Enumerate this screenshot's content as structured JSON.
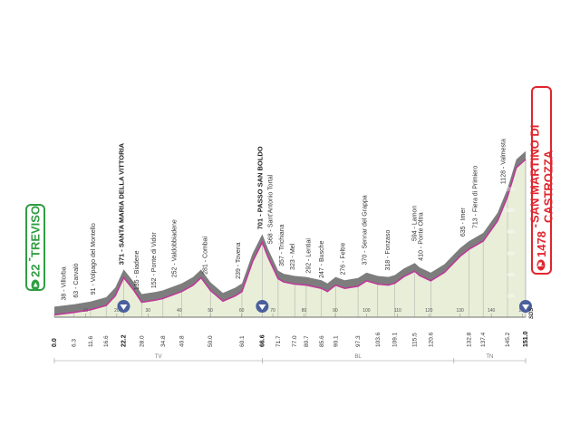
{
  "start": {
    "altitude": "22",
    "name": "TREVISO",
    "icon": "start-icon"
  },
  "finish": {
    "altitude": "1478",
    "name": "SAN MARTINO DI CASTROZZA",
    "icon": "finish-icon"
  },
  "colors": {
    "profile_fill": "#e8eed8",
    "profile_shadow": "#7d7d7d",
    "route_line": "#c0399a",
    "start": "#2f9e41",
    "finish": "#e0262e",
    "sprint": "#4a5f9c"
  },
  "chart_data": {
    "type": "area",
    "xlim": [
      0,
      151
    ],
    "ylim": [
      0,
      1500
    ],
    "profile": [
      [
        0,
        22
      ],
      [
        6.3,
        45
      ],
      [
        11.6,
        70
      ],
      [
        16.6,
        110
      ],
      [
        19.5,
        200
      ],
      [
        22.2,
        371
      ],
      [
        25.5,
        250
      ],
      [
        28,
        140
      ],
      [
        32.5,
        160
      ],
      [
        34.8,
        175
      ],
      [
        40.8,
        240
      ],
      [
        44.5,
        300
      ],
      [
        47,
        370
      ],
      [
        50,
        250
      ],
      [
        54,
        150
      ],
      [
        58,
        200
      ],
      [
        60.1,
        240
      ],
      [
        63.5,
        520
      ],
      [
        66.6,
        701
      ],
      [
        68.5,
        560
      ],
      [
        71.7,
        360
      ],
      [
        73.5,
        330
      ],
      [
        77,
        310
      ],
      [
        80.7,
        300
      ],
      [
        85.6,
        270
      ],
      [
        87.5,
        240
      ],
      [
        90.1,
        300
      ],
      [
        93,
        270
      ],
      [
        97.3,
        290
      ],
      [
        100,
        340
      ],
      [
        103.6,
        310
      ],
      [
        107,
        300
      ],
      [
        109.1,
        318
      ],
      [
        112,
        380
      ],
      [
        115.5,
        430
      ],
      [
        117,
        390
      ],
      [
        120.6,
        340
      ],
      [
        125,
        420
      ],
      [
        130,
        570
      ],
      [
        132.8,
        635
      ],
      [
        137.4,
        713
      ],
      [
        142,
        900
      ],
      [
        145.2,
        1128
      ],
      [
        148,
        1400
      ],
      [
        151,
        1478
      ]
    ],
    "places": [
      {
        "label": "38 - Villorba",
        "km": 3.6,
        "alt": 38,
        "bold": false
      },
      {
        "label": "63 - Carvalò",
        "km": 7.5,
        "alt": 63,
        "bold": false
      },
      {
        "label": "91 - Volpago del Montello",
        "km": 13.0,
        "alt": 91,
        "bold": false
      },
      {
        "label": "371 - SANTA MARIA DELLA VITTORIA",
        "km": 22.2,
        "alt": 371,
        "bold": true
      },
      {
        "label": "135 - Biadene",
        "km": 27.0,
        "alt": 135,
        "bold": false
      },
      {
        "label": "152 - Ponte di Vidor",
        "km": 32.5,
        "alt": 152,
        "bold": false
      },
      {
        "label": "252 - Valdobbiadene",
        "km": 39.0,
        "alt": 252,
        "bold": false
      },
      {
        "label": "281 - Combai",
        "km": 49.0,
        "alt": 281,
        "bold": false
      },
      {
        "label": "239 - Tovena",
        "km": 59.5,
        "alt": 239,
        "bold": false
      },
      {
        "label": "701 - PASSO SAN BOLDO",
        "km": 66.6,
        "alt": 701,
        "bold": true
      },
      {
        "label": "568 - Sant'Antonio Tortal",
        "km": 69.8,
        "alt": 568,
        "bold": false
      },
      {
        "label": "357 - Trichiana",
        "km": 73.5,
        "alt": 357,
        "bold": false
      },
      {
        "label": "323 - Mel",
        "km": 77.0,
        "alt": 323,
        "bold": false
      },
      {
        "label": "292 - Lentiai",
        "km": 82.0,
        "alt": 292,
        "bold": false
      },
      {
        "label": "247 - Busche",
        "km": 86.2,
        "alt": 247,
        "bold": false
      },
      {
        "label": "276 - Feltre",
        "km": 93.0,
        "alt": 276,
        "bold": false
      },
      {
        "label": "370 - Sennar del Grappa",
        "km": 100.0,
        "alt": 370,
        "bold": false
      },
      {
        "label": "318 - Fonzaso",
        "km": 107.5,
        "alt": 318,
        "bold": false
      },
      {
        "label": "594 - Lamon",
        "km": 116.0,
        "alt": 594,
        "bold": false
      },
      {
        "label": "410 - Ponte Oltra",
        "km": 118.0,
        "alt": 410,
        "bold": false
      },
      {
        "label": "635 - Imer",
        "km": 131.5,
        "alt": 635,
        "bold": false
      },
      {
        "label": "713 - Fiera di Primiero",
        "km": 135.5,
        "alt": 713,
        "bold": false
      },
      {
        "label": "1128 - Valmesta",
        "km": 144.5,
        "alt": 1128,
        "bold": false
      }
    ],
    "km_marks": [
      {
        "km": 0,
        "label": "0.0",
        "bold": true
      },
      {
        "km": 6.3,
        "label": "6.3"
      },
      {
        "km": 11.6,
        "label": "11.6"
      },
      {
        "km": 16.6,
        "label": "16.6"
      },
      {
        "km": 22.2,
        "label": "22.2",
        "bold": true
      },
      {
        "km": 28.0,
        "label": "28.0"
      },
      {
        "km": 34.8,
        "label": "34.8"
      },
      {
        "km": 40.8,
        "label": "40.8"
      },
      {
        "km": 50.0,
        "label": "50.0"
      },
      {
        "km": 60.1,
        "label": "60.1"
      },
      {
        "km": 66.6,
        "label": "66.6",
        "bold": true
      },
      {
        "km": 71.7,
        "label": "71.7"
      },
      {
        "km": 77.0,
        "label": "77.0"
      },
      {
        "km": 80.7,
        "label": "80.7"
      },
      {
        "km": 85.6,
        "label": "85.6"
      },
      {
        "km": 90.1,
        "label": "90.1"
      },
      {
        "km": 97.3,
        "label": "97.3"
      },
      {
        "km": 103.6,
        "label": "103.6"
      },
      {
        "km": 109.1,
        "label": "109.1"
      },
      {
        "km": 115.5,
        "label": "115.5"
      },
      {
        "km": 120.6,
        "label": "120.6"
      },
      {
        "km": 132.8,
        "label": "132.8"
      },
      {
        "km": 137.4,
        "label": "137.4"
      },
      {
        "km": 145.2,
        "label": "145.2"
      },
      {
        "km": 151.0,
        "label": "151.0",
        "bold": true
      }
    ],
    "distance_ticks": [
      "10",
      "20",
      "30",
      "40",
      "50",
      "60",
      "70",
      "80",
      "90",
      "100",
      "110",
      "120",
      "130",
      "140",
      "150"
    ],
    "altitude_ticks": [
      "200",
      "400",
      "600",
      "800",
      "1000",
      "1200"
    ],
    "gpm_points": [
      {
        "km": 22.2,
        "icon": "gpm-climb-icon"
      },
      {
        "km": 66.6,
        "icon": "gpm-climb-icon"
      },
      {
        "km": 151.0,
        "icon": "gpm-climb-icon"
      }
    ],
    "sprint": {
      "code": "SDS",
      "km": 151.0
    },
    "regions": [
      {
        "code": "TV",
        "from": 0,
        "to": 66.6
      },
      {
        "code": "BL",
        "from": 66.6,
        "to": 128
      },
      {
        "code": "TN",
        "from": 128,
        "to": 151
      }
    ]
  }
}
